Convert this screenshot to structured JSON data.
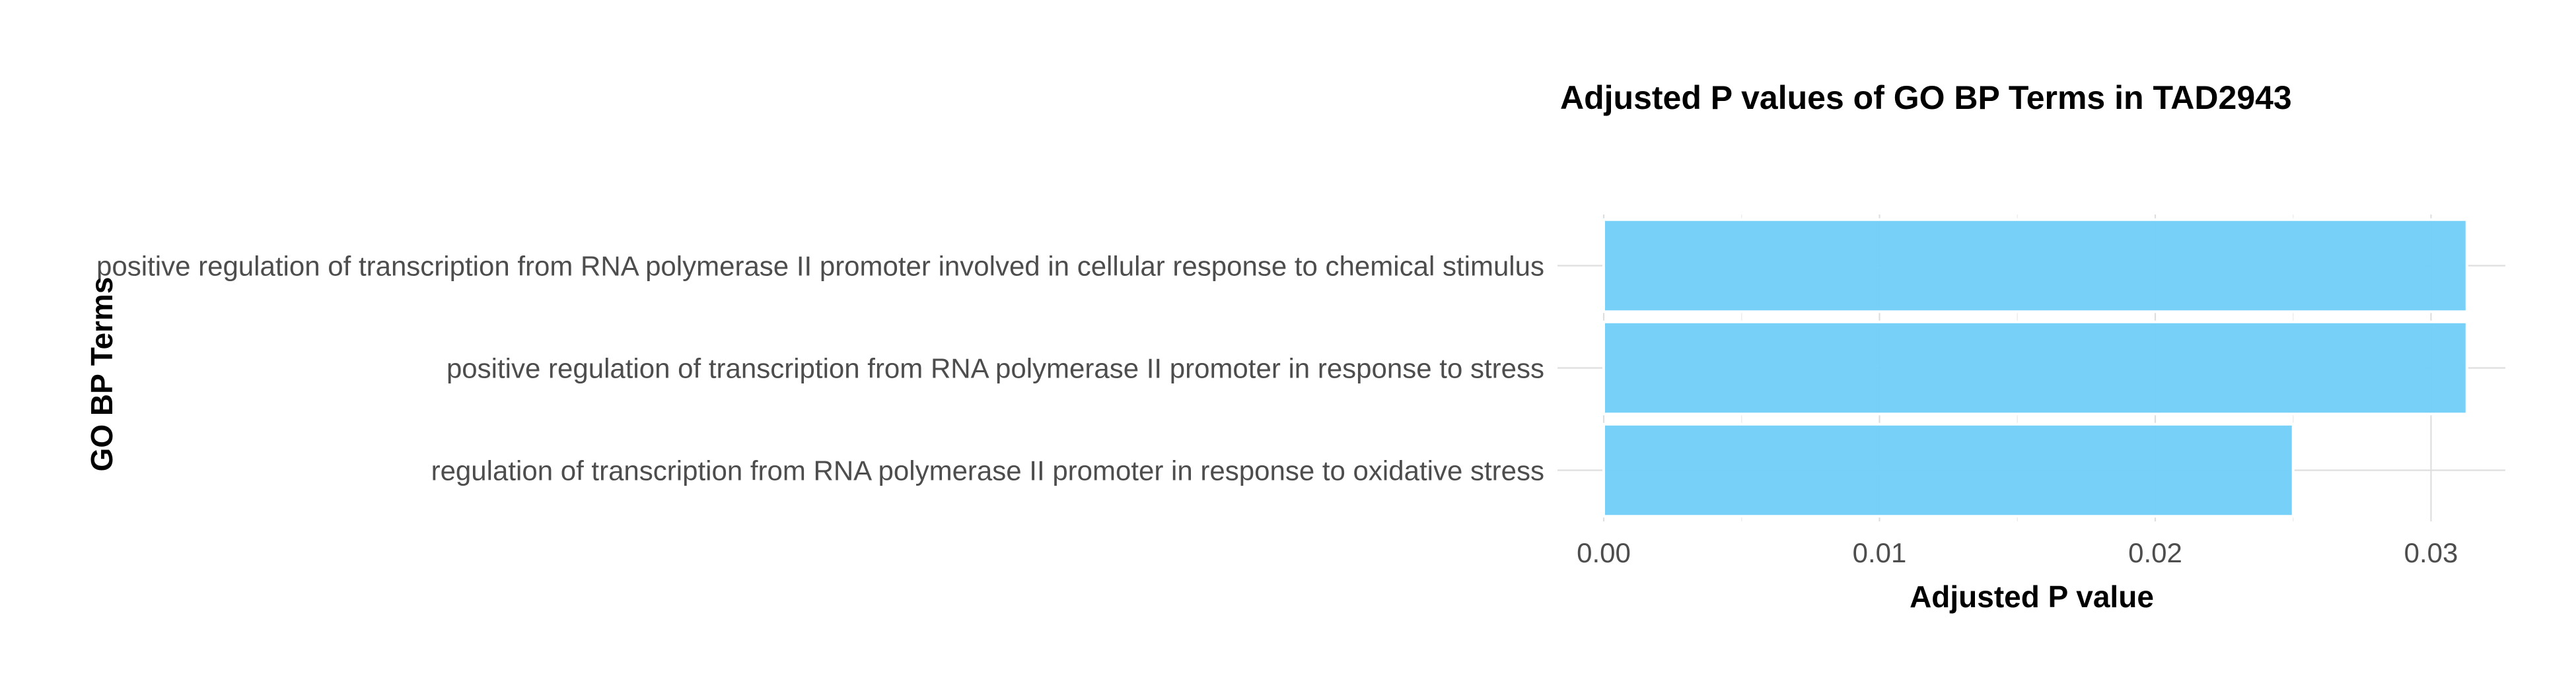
{
  "chart_data": {
    "type": "bar",
    "orientation": "horizontal",
    "title": "Adjusted P values of GO BP Terms in TAD2943",
    "xlabel": "Adjusted P value",
    "ylabel": "GO BP Terms",
    "categories": [
      "positive regulation of transcription from RNA polymerase II promoter involved in cellular response to chemical stimulus",
      "positive regulation of transcription from RNA polymerase II promoter in response to stress",
      "regulation of transcription from RNA polymerase II promoter in response to oxidative stress"
    ],
    "values": [
      0.0313,
      0.0313,
      0.025
    ],
    "xlim": [
      0,
      0.0328
    ],
    "xticks": [
      0,
      0.01,
      0.02,
      0.03
    ],
    "xtick_labels": [
      "0.00",
      "0.01",
      "0.02",
      "0.03"
    ],
    "grid": true,
    "legend": "none",
    "bar_color": "#72CEF8"
  }
}
